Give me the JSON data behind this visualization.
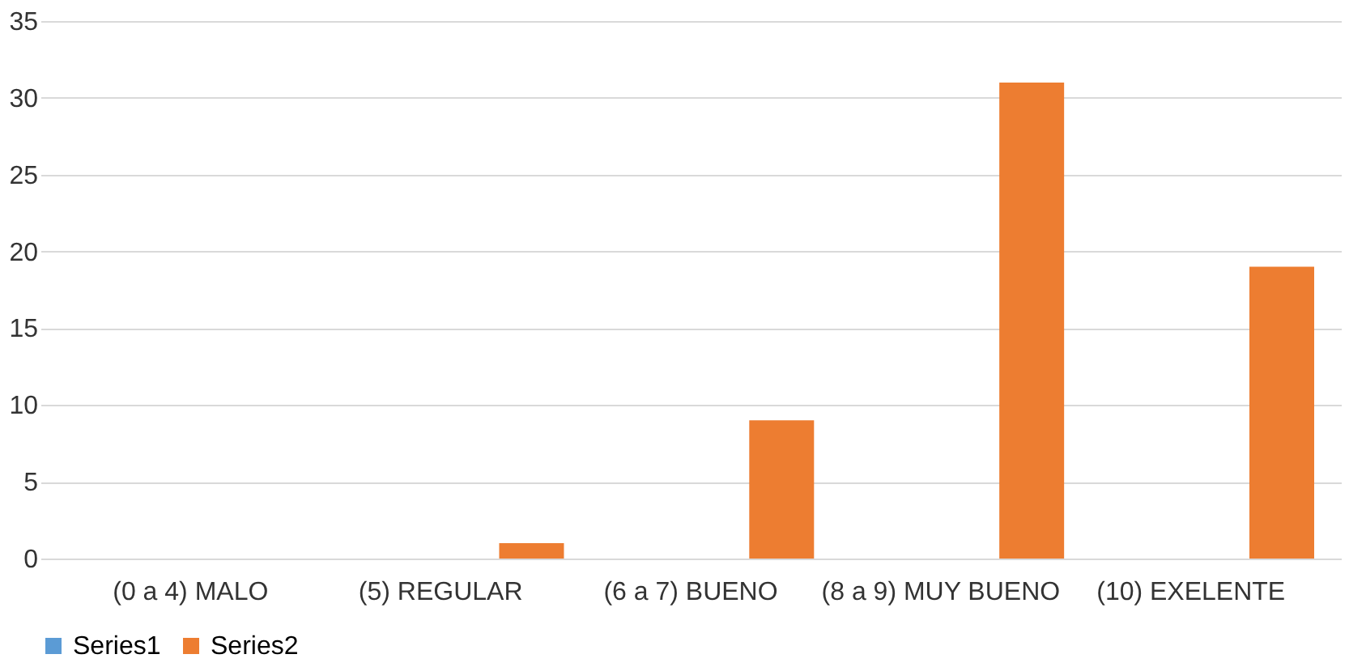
{
  "chart_data": {
    "type": "bar",
    "categories": [
      "(0 a 4) MALO",
      "(5) REGULAR",
      "(6 a 7) BUENO",
      "(8 a 9) MUY BUENO",
      "(10) EXELENTE"
    ],
    "series": [
      {
        "name": "Series1",
        "color": "#5b9bd5",
        "values": [
          0,
          0,
          0,
          0,
          0
        ]
      },
      {
        "name": "Series2",
        "color": "#ed7d31",
        "values": [
          0,
          1,
          9,
          31,
          19
        ]
      }
    ],
    "ylim": [
      0,
      35
    ],
    "yticks": [
      0,
      5,
      10,
      15,
      20,
      25,
      30,
      35
    ],
    "grid": "y",
    "legend": "bottom"
  }
}
